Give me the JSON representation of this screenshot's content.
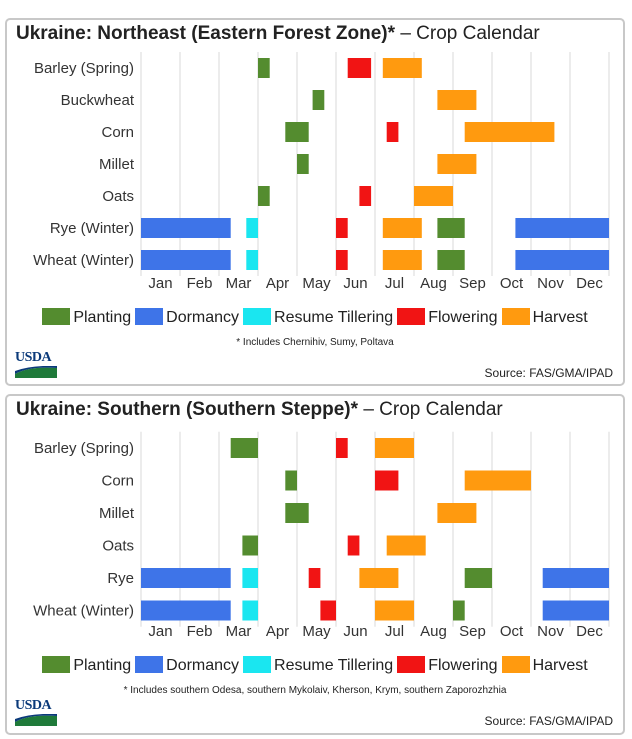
{
  "usda_logo_text": "USDA",
  "legend": [
    {
      "label": "Planting",
      "color": "#548c2f"
    },
    {
      "label": "Dormancy",
      "color": "#3e74e8"
    },
    {
      "label": "Resume Tillering",
      "color": "#1ae6f0"
    },
    {
      "label": "Flowering",
      "color": "#f11414"
    },
    {
      "label": "Harvest",
      "color": "#ff9a0f"
    }
  ],
  "chart_data": [
    {
      "type": "gantt",
      "title_bold": "Ukraine: Northeast (Eastern Forest Zone)*",
      "title_rest": "– Crop Calendar",
      "x_ticks": [
        "Jan",
        "Feb",
        "Mar",
        "Apr",
        "May",
        "Jun",
        "Jul",
        "Aug",
        "Sep",
        "Oct",
        "Nov",
        "Dec"
      ],
      "x_unit": "month (0 = Jan 1, 12 = Dec 31)",
      "xlim": [
        0,
        12
      ],
      "grid": true,
      "footnote": "* Includes Chernihiv, Sumy, Poltava",
      "source": "Source: FAS/GMA/IPAD",
      "crops": [
        {
          "name": "Barley (Spring)",
          "bars": [
            {
              "stage": "Planting",
              "start": 3.0,
              "end": 3.3
            },
            {
              "stage": "Flowering",
              "start": 5.3,
              "end": 5.9
            },
            {
              "stage": "Harvest",
              "start": 6.2,
              "end": 7.2
            }
          ]
        },
        {
          "name": "Buckwheat",
          "bars": [
            {
              "stage": "Planting",
              "start": 4.4,
              "end": 4.7
            },
            {
              "stage": "Harvest",
              "start": 7.6,
              "end": 8.6
            }
          ]
        },
        {
          "name": "Corn",
          "bars": [
            {
              "stage": "Planting",
              "start": 3.7,
              "end": 4.3
            },
            {
              "stage": "Flowering",
              "start": 6.3,
              "end": 6.6
            },
            {
              "stage": "Harvest",
              "start": 8.3,
              "end": 10.6
            }
          ]
        },
        {
          "name": "Millet",
          "bars": [
            {
              "stage": "Planting",
              "start": 4.0,
              "end": 4.3
            },
            {
              "stage": "Harvest",
              "start": 7.6,
              "end": 8.6
            }
          ]
        },
        {
          "name": "Oats",
          "bars": [
            {
              "stage": "Planting",
              "start": 3.0,
              "end": 3.3
            },
            {
              "stage": "Flowering",
              "start": 5.6,
              "end": 5.9
            },
            {
              "stage": "Harvest",
              "start": 7.0,
              "end": 8.0
            }
          ]
        },
        {
          "name": "Rye (Winter)",
          "bars": [
            {
              "stage": "Dormancy",
              "start": 0.0,
              "end": 2.3
            },
            {
              "stage": "Resume Tillering",
              "start": 2.7,
              "end": 3.0
            },
            {
              "stage": "Flowering",
              "start": 5.0,
              "end": 5.3
            },
            {
              "stage": "Harvest",
              "start": 6.2,
              "end": 7.2
            },
            {
              "stage": "Planting",
              "start": 7.6,
              "end": 8.3
            },
            {
              "stage": "Dormancy",
              "start": 9.6,
              "end": 12.0
            }
          ]
        },
        {
          "name": "Wheat (Winter)",
          "bars": [
            {
              "stage": "Dormancy",
              "start": 0.0,
              "end": 2.3
            },
            {
              "stage": "Resume Tillering",
              "start": 2.7,
              "end": 3.0
            },
            {
              "stage": "Flowering",
              "start": 5.0,
              "end": 5.3
            },
            {
              "stage": "Harvest",
              "start": 6.2,
              "end": 7.2
            },
            {
              "stage": "Planting",
              "start": 7.6,
              "end": 8.3
            },
            {
              "stage": "Dormancy",
              "start": 9.6,
              "end": 12.0
            }
          ]
        }
      ]
    },
    {
      "type": "gantt",
      "title_bold": "Ukraine: Southern (Southern Steppe)*",
      "title_rest": "– Crop Calendar",
      "x_ticks": [
        "Jan",
        "Feb",
        "Mar",
        "Apr",
        "May",
        "Jun",
        "Jul",
        "Aug",
        "Sep",
        "Oct",
        "Nov",
        "Dec"
      ],
      "x_unit": "month (0 = Jan 1, 12 = Dec 31)",
      "xlim": [
        0,
        12
      ],
      "grid": true,
      "footnote": "* Includes southern Odesa, southern Mykolaiv, Kherson, Krym, southern Zaporozhzhia",
      "source": "Source: FAS/GMA/IPAD",
      "crops": [
        {
          "name": "Barley (Spring)",
          "bars": [
            {
              "stage": "Planting",
              "start": 2.3,
              "end": 3.0
            },
            {
              "stage": "Flowering",
              "start": 5.0,
              "end": 5.3
            },
            {
              "stage": "Harvest",
              "start": 6.0,
              "end": 7.0
            }
          ]
        },
        {
          "name": "Corn",
          "bars": [
            {
              "stage": "Planting",
              "start": 3.7,
              "end": 4.0
            },
            {
              "stage": "Flowering",
              "start": 6.0,
              "end": 6.6
            },
            {
              "stage": "Harvest",
              "start": 8.3,
              "end": 10.0
            }
          ]
        },
        {
          "name": "Millet",
          "bars": [
            {
              "stage": "Planting",
              "start": 3.7,
              "end": 4.3
            },
            {
              "stage": "Harvest",
              "start": 7.6,
              "end": 8.6
            }
          ]
        },
        {
          "name": "Oats",
          "bars": [
            {
              "stage": "Planting",
              "start": 2.6,
              "end": 3.0
            },
            {
              "stage": "Flowering",
              "start": 5.3,
              "end": 5.6
            },
            {
              "stage": "Harvest",
              "start": 6.3,
              "end": 7.3
            }
          ]
        },
        {
          "name": "Rye",
          "bars": [
            {
              "stage": "Dormancy",
              "start": 0.0,
              "end": 2.3
            },
            {
              "stage": "Resume Tillering",
              "start": 2.6,
              "end": 3.0
            },
            {
              "stage": "Flowering",
              "start": 4.3,
              "end": 4.6
            },
            {
              "stage": "Harvest",
              "start": 5.6,
              "end": 6.6
            },
            {
              "stage": "Planting",
              "start": 8.3,
              "end": 9.0
            },
            {
              "stage": "Dormancy",
              "start": 10.3,
              "end": 12.0
            }
          ]
        },
        {
          "name": "Wheat (Winter)",
          "bars": [
            {
              "stage": "Dormancy",
              "start": 0.0,
              "end": 2.3
            },
            {
              "stage": "Resume Tillering",
              "start": 2.6,
              "end": 3.0
            },
            {
              "stage": "Flowering",
              "start": 4.6,
              "end": 5.0
            },
            {
              "stage": "Harvest",
              "start": 6.0,
              "end": 7.0
            },
            {
              "stage": "Planting",
              "start": 8.0,
              "end": 8.3
            },
            {
              "stage": "Dormancy",
              "start": 10.3,
              "end": 12.0
            }
          ]
        }
      ]
    }
  ]
}
